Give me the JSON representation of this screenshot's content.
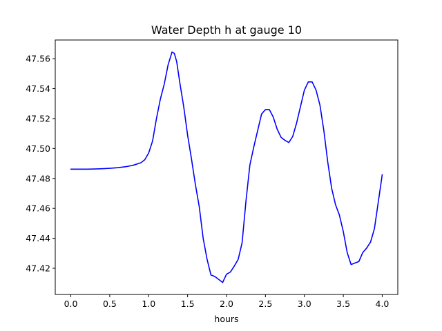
{
  "chart_data": {
    "type": "line",
    "title": "Water Depth h at gauge 10",
    "xlabel": "hours",
    "ylabel": "",
    "xlim": [
      -0.2,
      4.2
    ],
    "ylim": [
      47.4025,
      47.5725
    ],
    "xticks": [
      {
        "value": 0.0,
        "label": "0.0"
      },
      {
        "value": 0.5,
        "label": "0.5"
      },
      {
        "value": 1.0,
        "label": "1.0"
      },
      {
        "value": 1.5,
        "label": "1.5"
      },
      {
        "value": 2.0,
        "label": "2.0"
      },
      {
        "value": 2.5,
        "label": "2.5"
      },
      {
        "value": 3.0,
        "label": "3.0"
      },
      {
        "value": 3.5,
        "label": "3.5"
      },
      {
        "value": 4.0,
        "label": "4.0"
      }
    ],
    "yticks": [
      {
        "value": 47.42,
        "label": "47.42"
      },
      {
        "value": 47.44,
        "label": "47.44"
      },
      {
        "value": 47.46,
        "label": "47.46"
      },
      {
        "value": 47.48,
        "label": "47.48"
      },
      {
        "value": 47.5,
        "label": "47.50"
      },
      {
        "value": 47.52,
        "label": "47.52"
      },
      {
        "value": 47.54,
        "label": "47.54"
      },
      {
        "value": 47.56,
        "label": "47.56"
      }
    ],
    "grid": false,
    "legend": "none",
    "series": [
      {
        "color": "#0000ff",
        "x": [
          0.0,
          0.1,
          0.2,
          0.3,
          0.4,
          0.5,
          0.6,
          0.7,
          0.8,
          0.9,
          0.95,
          1.0,
          1.05,
          1.1,
          1.15,
          1.2,
          1.25,
          1.3,
          1.33,
          1.36,
          1.4,
          1.45,
          1.5,
          1.55,
          1.6,
          1.65,
          1.7,
          1.75,
          1.8,
          1.85,
          1.9,
          1.95,
          2.0,
          2.05,
          2.1,
          2.15,
          2.2,
          2.25,
          2.3,
          2.35,
          2.4,
          2.45,
          2.5,
          2.55,
          2.6,
          2.65,
          2.7,
          2.75,
          2.8,
          2.85,
          2.9,
          2.95,
          3.0,
          3.05,
          3.1,
          3.15,
          3.2,
          3.25,
          3.3,
          3.35,
          3.4,
          3.45,
          3.5,
          3.55,
          3.6,
          3.65,
          3.7,
          3.75,
          3.8,
          3.85,
          3.9,
          3.95,
          4.0
        ],
        "values": [
          47.4862,
          47.4862,
          47.4862,
          47.4863,
          47.4865,
          47.4868,
          47.4872,
          47.4878,
          47.4888,
          47.4905,
          47.4925,
          47.497,
          47.505,
          47.52,
          47.533,
          47.543,
          47.556,
          47.5645,
          47.5635,
          47.558,
          47.544,
          47.528,
          47.509,
          47.493,
          47.476,
          47.461,
          47.44,
          47.426,
          47.4155,
          47.4145,
          47.4125,
          47.4105,
          47.416,
          47.4175,
          47.4215,
          47.426,
          47.437,
          47.465,
          47.489,
          47.501,
          47.512,
          47.523,
          47.526,
          47.526,
          47.521,
          47.513,
          47.5075,
          47.5055,
          47.504,
          47.508,
          47.517,
          47.528,
          47.539,
          47.5445,
          47.5445,
          47.539,
          47.529,
          47.512,
          47.491,
          47.4735,
          47.4625,
          47.4555,
          47.4445,
          47.4305,
          47.4225,
          47.4235,
          47.4245,
          47.4305,
          47.4335,
          47.4375,
          47.4465,
          47.4645,
          47.4825
        ]
      }
    ]
  }
}
